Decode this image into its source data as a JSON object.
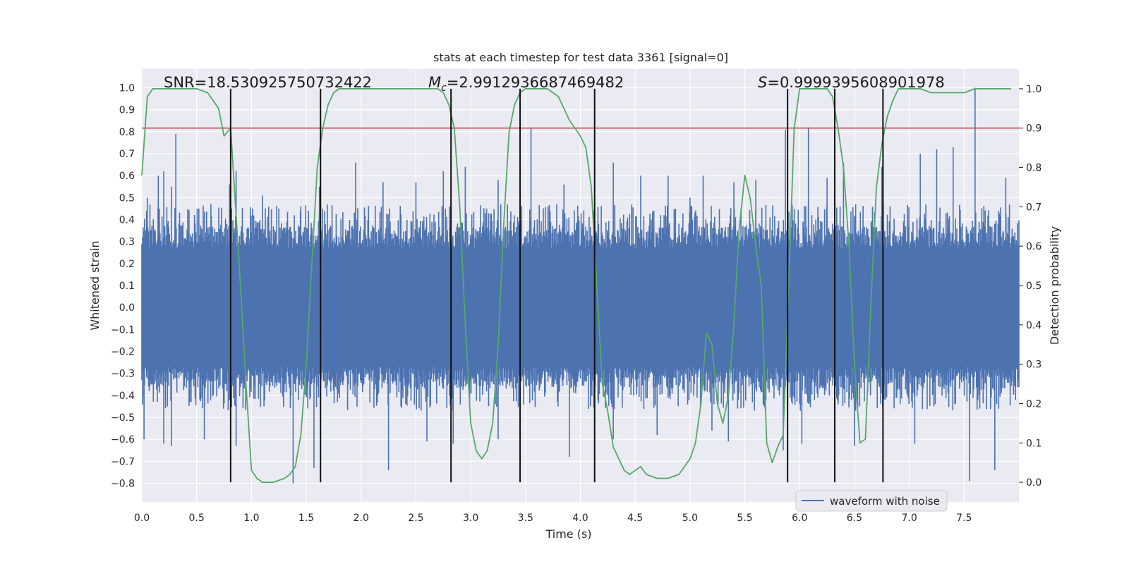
{
  "chart_data": {
    "type": "line",
    "title": "stats at each timestep for test data 3361 [signal=0]",
    "xlabel": "Time (s)",
    "ylabel_left": "Whitened strain",
    "ylabel_right": "Detection probability",
    "xlim": [
      0.0,
      8.0
    ],
    "ylim_left": [
      -0.885,
      1.085
    ],
    "ylim_right": [
      -0.05,
      1.05
    ],
    "x_ticks": [
      "0.0",
      "0.5",
      "1.0",
      "1.5",
      "2.0",
      "2.5",
      "3.0",
      "3.5",
      "4.0",
      "4.5",
      "5.0",
      "5.5",
      "6.0",
      "6.5",
      "7.0",
      "7.5"
    ],
    "y_ticks_left": [
      "1.0",
      "0.9",
      "0.8",
      "0.7",
      "0.6",
      "0.5",
      "0.4",
      "0.3",
      "0.2",
      "0.1",
      "0.0",
      "−0.1",
      "−0.2",
      "−0.3",
      "−0.4",
      "−0.5",
      "−0.6",
      "−0.7",
      "−0.8"
    ],
    "y_ticks_right": [
      "1.0",
      "0.9",
      "0.8",
      "0.7",
      "0.6",
      "0.5",
      "0.4",
      "0.3",
      "0.2",
      "0.1",
      "0.0"
    ],
    "annotations": {
      "snr": "SNR=18.530925750732422",
      "mc_symbol": "M",
      "mc_sub": "c",
      "mc_value": "=2.9912936687469482",
      "s_symbol": "S",
      "s_value": "=0.9999395608901978"
    },
    "threshold_line": {
      "y": 0.9,
      "axis": "right",
      "color": "#c44e52"
    },
    "vertical_lines": [
      0.81,
      1.63,
      2.82,
      3.45,
      4.13,
      5.89,
      6.32,
      6.76
    ],
    "series": [
      {
        "name": "waveform with noise",
        "axis": "left",
        "color": "#4c72b0",
        "description_kind": "dense noise",
        "core_amplitude": 0.27,
        "peaks_up": [
          [
            0.05,
            0.5
          ],
          [
            0.15,
            0.6
          ],
          [
            0.2,
            0.62
          ],
          [
            0.27,
            0.55
          ],
          [
            0.31,
            0.79
          ],
          [
            0.52,
            0.45
          ],
          [
            0.63,
            0.47
          ],
          [
            0.8,
            0.56
          ],
          [
            0.86,
            0.62
          ],
          [
            1.1,
            0.51
          ],
          [
            1.25,
            0.45
          ],
          [
            1.45,
            0.46
          ],
          [
            1.62,
            0.55
          ],
          [
            1.95,
            0.66
          ],
          [
            2.2,
            0.57
          ],
          [
            2.5,
            0.57
          ],
          [
            2.75,
            0.62
          ],
          [
            2.95,
            0.64
          ],
          [
            3.25,
            0.58
          ],
          [
            3.55,
            0.82
          ],
          [
            3.85,
            0.56
          ],
          [
            4.3,
            0.66
          ],
          [
            4.55,
            0.6
          ],
          [
            4.8,
            0.6
          ],
          [
            5.0,
            0.5
          ],
          [
            5.12,
            0.6
          ],
          [
            5.4,
            0.57
          ],
          [
            5.6,
            0.58
          ],
          [
            5.87,
            0.81
          ],
          [
            6.08,
            0.82
          ],
          [
            6.25,
            0.59
          ],
          [
            6.4,
            0.66
          ],
          [
            6.75,
            0.64
          ],
          [
            7.1,
            0.7
          ],
          [
            7.25,
            0.72
          ],
          [
            7.4,
            0.73
          ],
          [
            7.6,
            1.0
          ],
          [
            7.88,
            0.59
          ]
        ],
        "peaks_down": [
          [
            0.02,
            -0.6
          ],
          [
            0.2,
            -0.62
          ],
          [
            0.27,
            -0.63
          ],
          [
            0.57,
            -0.6
          ],
          [
            0.86,
            -0.63
          ],
          [
            1.38,
            -0.8
          ],
          [
            1.57,
            -0.73
          ],
          [
            2.25,
            -0.74
          ],
          [
            2.6,
            -0.61
          ],
          [
            2.84,
            -0.62
          ],
          [
            3.25,
            -0.6
          ],
          [
            3.45,
            -0.69
          ],
          [
            3.9,
            -0.68
          ],
          [
            4.3,
            -0.6
          ],
          [
            4.7,
            -0.58
          ],
          [
            5.2,
            -0.56
          ],
          [
            5.35,
            -0.61
          ],
          [
            5.85,
            -0.65
          ],
          [
            6.02,
            -0.62
          ],
          [
            6.32,
            -0.63
          ],
          [
            6.5,
            -0.63
          ],
          [
            6.76,
            -0.68
          ],
          [
            7.05,
            -0.62
          ],
          [
            7.55,
            -0.79
          ],
          [
            7.78,
            -0.74
          ]
        ]
      },
      {
        "name": "",
        "axis": "right",
        "color": "#55a868",
        "x": [
          0.0,
          0.05,
          0.1,
          0.2,
          0.3,
          0.4,
          0.5,
          0.6,
          0.7,
          0.75,
          0.81,
          0.9,
          0.95,
          1.0,
          1.05,
          1.1,
          1.2,
          1.3,
          1.35,
          1.4,
          1.45,
          1.5,
          1.55,
          1.6,
          1.65,
          1.7,
          1.75,
          1.8,
          1.85,
          1.9,
          1.95,
          2.0,
          2.1,
          2.2,
          2.3,
          2.4,
          2.5,
          2.6,
          2.7,
          2.75,
          2.8,
          2.85,
          2.9,
          2.95,
          3.0,
          3.05,
          3.1,
          3.15,
          3.2,
          3.25,
          3.3,
          3.35,
          3.4,
          3.45,
          3.5,
          3.55,
          3.6,
          3.7,
          3.8,
          3.9,
          4.0,
          4.05,
          4.1,
          4.15,
          4.2,
          4.25,
          4.3,
          4.35,
          4.4,
          4.45,
          4.5,
          4.55,
          4.6,
          4.7,
          4.8,
          4.9,
          5.0,
          5.05,
          5.1,
          5.15,
          5.2,
          5.25,
          5.3,
          5.35,
          5.4,
          5.45,
          5.5,
          5.55,
          5.6,
          5.65,
          5.7,
          5.75,
          5.8,
          5.85,
          5.9,
          5.95,
          6.0,
          6.1,
          6.2,
          6.25,
          6.3,
          6.35,
          6.4,
          6.45,
          6.5,
          6.55,
          6.6,
          6.65,
          6.7,
          6.75,
          6.8,
          6.85,
          6.9,
          6.95,
          7.0,
          7.1,
          7.2,
          7.3,
          7.4,
          7.5,
          7.6,
          7.7,
          7.8,
          7.93
        ],
        "y": [
          0.78,
          0.98,
          1.0,
          1.0,
          1.0,
          1.0,
          1.0,
          0.99,
          0.95,
          0.88,
          0.9,
          0.5,
          0.25,
          0.03,
          0.01,
          0.0,
          0.0,
          0.01,
          0.02,
          0.04,
          0.12,
          0.3,
          0.55,
          0.8,
          0.9,
          0.96,
          0.99,
          1.0,
          1.0,
          1.0,
          1.0,
          1.0,
          1.0,
          1.0,
          1.0,
          1.0,
          1.0,
          1.0,
          1.0,
          0.99,
          0.96,
          0.9,
          0.7,
          0.4,
          0.15,
          0.08,
          0.06,
          0.08,
          0.15,
          0.35,
          0.65,
          0.89,
          0.96,
          0.99,
          1.0,
          1.0,
          1.0,
          1.0,
          0.98,
          0.92,
          0.88,
          0.85,
          0.75,
          0.5,
          0.25,
          0.18,
          0.09,
          0.06,
          0.03,
          0.02,
          0.03,
          0.04,
          0.02,
          0.01,
          0.01,
          0.02,
          0.06,
          0.1,
          0.2,
          0.38,
          0.35,
          0.2,
          0.15,
          0.22,
          0.4,
          0.65,
          0.78,
          0.72,
          0.6,
          0.5,
          0.1,
          0.05,
          0.09,
          0.12,
          0.5,
          0.9,
          1.0,
          1.0,
          1.0,
          1.0,
          0.98,
          0.9,
          0.8,
          0.6,
          0.3,
          0.1,
          0.11,
          0.45,
          0.75,
          0.86,
          0.93,
          0.97,
          1.0,
          1.0,
          1.0,
          1.0,
          0.99,
          0.99,
          0.99,
          0.99,
          1.0,
          1.0,
          1.0,
          1.0
        ]
      }
    ],
    "legend": {
      "placement": "lower-right",
      "entries": [
        "waveform with noise"
      ]
    },
    "style": {
      "background": "#eaeaf2",
      "grid": true,
      "grid_color": "#ffffff"
    }
  }
}
